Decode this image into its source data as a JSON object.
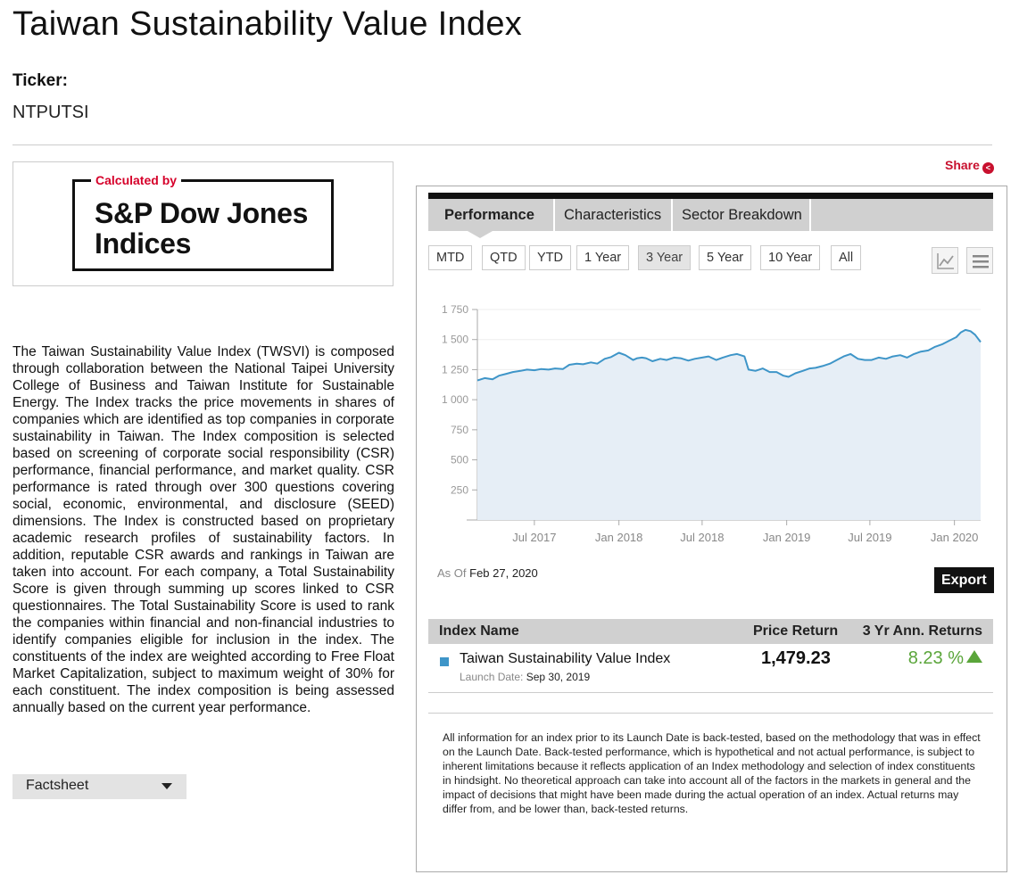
{
  "page": {
    "title": "Taiwan Sustainability Value Index",
    "ticker_label": "Ticker:",
    "ticker_value": "NTPUTSI"
  },
  "logo": {
    "calculated_by": "Calculated by",
    "name_line1": "S&P Dow Jones",
    "name_line2": "Indices"
  },
  "description": "The Taiwan Sustainability Value Index (TWSVI) is composed through collaboration between the National Taipei University College of Business and Taiwan Institute for Sustainable Energy. The Index tracks the price movements in shares of companies which are identified as top companies in corporate sustainability in Taiwan. The Index composition is selected based on screening of corporate social responsibility (CSR) performance, financial performance, and market quality. CSR performance is rated through over 300 questions covering social, economic, environmental, and disclosure (SEED) dimensions. The Index is constructed based on proprietary academic research profiles of sustainability factors. In addition, reputable CSR awards and rankings in Taiwan are taken into account. For each company, a Total Sustainability Score is given through summing up scores linked to CSR questionnaires. The Total Sustainability Score is used to rank the companies within financial and non-financial industries to identify companies eligible for inclusion in the index. The constituents of the index are weighted according to Free Float Market Capitalization, subject to maximum weight of 30% for each constituent. The index composition is being assessed annually based on the current year performance.",
  "factsheet": {
    "label": "Factsheet",
    "icon": "caret-down-icon"
  },
  "share": {
    "label": "Share",
    "icon": "share-icon"
  },
  "tabs": [
    {
      "label": "Performance",
      "active": true
    },
    {
      "label": "Characteristics",
      "active": false
    },
    {
      "label": "Sector Breakdown",
      "active": false
    }
  ],
  "periods": [
    {
      "label": "MTD",
      "active": false
    },
    {
      "label": "QTD",
      "active": false
    },
    {
      "label": "YTD",
      "active": false
    },
    {
      "label": "1 Year",
      "active": false
    },
    {
      "label": "3 Year",
      "active": true
    },
    {
      "label": "5 Year",
      "active": false
    },
    {
      "label": "10 Year",
      "active": false
    },
    {
      "label": "All",
      "active": false
    }
  ],
  "tools": {
    "chart_icon": "line-chart-icon",
    "menu_icon": "hamburger-menu-icon"
  },
  "colors": {
    "line": "#3e95c8",
    "area": "#e6eef6",
    "up": "#5aa53a",
    "share": "#c8102e"
  },
  "chart_data": {
    "type": "area",
    "title": "",
    "xlabel": "",
    "ylabel": "",
    "y_tick_labels": [
      "250",
      "500",
      "750",
      "1 000",
      "1 250",
      "1 500",
      "1 750"
    ],
    "y_tick_values": [
      250,
      500,
      750,
      1000,
      1250,
      1500,
      1750
    ],
    "ylim": [
      0,
      1750
    ],
    "x_tick_labels": [
      "Jul 2017",
      "Jan 2018",
      "Jul 2018",
      "Jan 2019",
      "Jul 2019",
      "Jan 2020"
    ],
    "x_tick_values": [
      "2017-07-01",
      "2018-01-01",
      "2018-07-01",
      "2019-01-01",
      "2019-07-01",
      "2020-01-01"
    ],
    "xlim": [
      "2017-02-27",
      "2020-02-27"
    ],
    "grid": true,
    "series": [
      {
        "name": "Taiwan Sustainability Value Index",
        "x": [
          "2017-02-27",
          "2017-03-15",
          "2017-04-01",
          "2017-04-15",
          "2017-05-01",
          "2017-05-15",
          "2017-06-01",
          "2017-06-15",
          "2017-07-01",
          "2017-07-15",
          "2017-08-01",
          "2017-08-15",
          "2017-09-01",
          "2017-09-15",
          "2017-10-01",
          "2017-10-15",
          "2017-11-01",
          "2017-11-15",
          "2017-12-01",
          "2017-12-15",
          "2018-01-01",
          "2018-01-15",
          "2018-02-01",
          "2018-02-10",
          "2018-02-20",
          "2018-03-01",
          "2018-03-15",
          "2018-04-01",
          "2018-04-15",
          "2018-05-01",
          "2018-05-15",
          "2018-06-01",
          "2018-06-15",
          "2018-07-01",
          "2018-07-15",
          "2018-08-01",
          "2018-08-15",
          "2018-09-01",
          "2018-09-15",
          "2018-10-01",
          "2018-10-10",
          "2018-10-25",
          "2018-11-10",
          "2018-11-25",
          "2018-12-10",
          "2018-12-25",
          "2019-01-05",
          "2019-01-20",
          "2019-02-05",
          "2019-02-20",
          "2019-03-05",
          "2019-03-20",
          "2019-04-05",
          "2019-04-20",
          "2019-05-05",
          "2019-05-20",
          "2019-06-05",
          "2019-06-20",
          "2019-07-05",
          "2019-07-20",
          "2019-08-05",
          "2019-08-20",
          "2019-09-05",
          "2019-09-20",
          "2019-10-05",
          "2019-10-20",
          "2019-11-05",
          "2019-11-20",
          "2019-12-05",
          "2019-12-20",
          "2020-01-05",
          "2020-01-15",
          "2020-01-25",
          "2020-02-05",
          "2020-02-15",
          "2020-02-27"
        ],
        "y": [
          1160,
          1180,
          1170,
          1200,
          1215,
          1230,
          1240,
          1250,
          1245,
          1255,
          1250,
          1260,
          1255,
          1290,
          1300,
          1295,
          1310,
          1300,
          1340,
          1355,
          1390,
          1370,
          1330,
          1345,
          1350,
          1345,
          1320,
          1340,
          1330,
          1350,
          1345,
          1325,
          1340,
          1350,
          1360,
          1330,
          1350,
          1370,
          1380,
          1360,
          1250,
          1240,
          1260,
          1230,
          1230,
          1200,
          1190,
          1220,
          1240,
          1260,
          1265,
          1280,
          1300,
          1330,
          1360,
          1380,
          1340,
          1330,
          1330,
          1350,
          1340,
          1360,
          1370,
          1350,
          1380,
          1400,
          1410,
          1440,
          1460,
          1490,
          1520,
          1560,
          1580,
          1570,
          1540,
          1479
        ]
      }
    ]
  },
  "as_of": {
    "label": "As Of",
    "date": "Feb 27, 2020"
  },
  "export_label": "Export",
  "table": {
    "headers": [
      "Index Name",
      "Price Return",
      "3 Yr Ann. Returns"
    ],
    "row": {
      "name": "Taiwan Sustainability Value Index",
      "launch_label": "Launch Date:",
      "launch_date": "Sep 30, 2019",
      "price_return": "1,479.23",
      "ann_return": "8.23 %"
    }
  },
  "disclaimer": "All information for an index prior to its Launch Date is back-tested, based on the methodology that was in effect on the Launch Date. Back-tested performance, which is hypothetical and not actual performance, is subject to inherent limitations because it reflects application of an Index methodology and selection of index constituents in hindsight. No theoretical approach can take into account all of the factors in the markets in general and the impact of decisions that might have been made during the actual operation of an index. Actual returns may differ from, and be lower than, back-tested returns."
}
